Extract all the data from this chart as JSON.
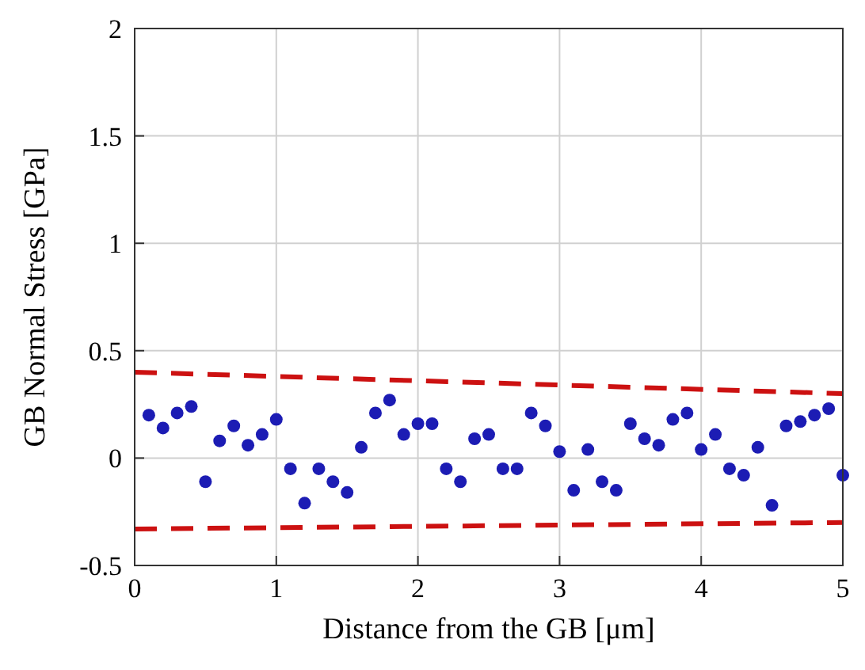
{
  "chart_data": {
    "type": "scatter",
    "xlabel": "Distance from the GB [μm]",
    "ylabel": "GB Normal Stress [GPa]",
    "xlim": [
      0,
      5
    ],
    "ylim": [
      -0.5,
      2
    ],
    "xticks": [
      0,
      1,
      2,
      3,
      4,
      5
    ],
    "yticks": [
      -0.5,
      0,
      0.5,
      1,
      1.5,
      2
    ],
    "grid": true,
    "series": [
      {
        "color": "#1c1cb4",
        "marker": "circle",
        "x": [
          0.1,
          0.2,
          0.3,
          0.4,
          0.5,
          0.6,
          0.7,
          0.8,
          0.9,
          1.0,
          1.1,
          1.2,
          1.3,
          1.4,
          1.5,
          1.6,
          1.7,
          1.8,
          1.9,
          2.0,
          2.1,
          2.2,
          2.3,
          2.4,
          2.5,
          2.6,
          2.7,
          2.8,
          2.9,
          3.0,
          3.1,
          3.2,
          3.3,
          3.4,
          3.5,
          3.6,
          3.7,
          3.8,
          3.9,
          4.0,
          4.1,
          4.2,
          4.3,
          4.4,
          4.5,
          4.6,
          4.7,
          4.8,
          4.9,
          5.0
        ],
        "values": [
          0.2,
          0.14,
          0.21,
          0.24,
          -0.11,
          0.08,
          0.15,
          0.06,
          0.11,
          0.18,
          -0.05,
          -0.21,
          -0.05,
          -0.11,
          -0.16,
          0.05,
          0.21,
          0.27,
          0.11,
          0.16,
          0.16,
          -0.05,
          -0.11,
          0.09,
          0.11,
          -0.05,
          -0.05,
          0.21,
          0.15,
          0.03,
          -0.15,
          0.04,
          -0.11,
          -0.15,
          0.16,
          0.09,
          0.06,
          0.18,
          0.21,
          0.04,
          0.11,
          -0.05,
          -0.08,
          0.05,
          -0.22,
          0.15,
          0.17,
          0.2,
          0.23,
          -0.08
        ]
      },
      {
        "type": "line",
        "color": "#cc1111",
        "line_style": "dashed",
        "marker": "none",
        "x": [
          0,
          5
        ],
        "values": [
          0.4,
          0.3
        ]
      },
      {
        "type": "line",
        "color": "#cc1111",
        "line_style": "dashed",
        "marker": "none",
        "x": [
          0,
          5
        ],
        "values": [
          -0.33,
          -0.3
        ]
      }
    ]
  }
}
